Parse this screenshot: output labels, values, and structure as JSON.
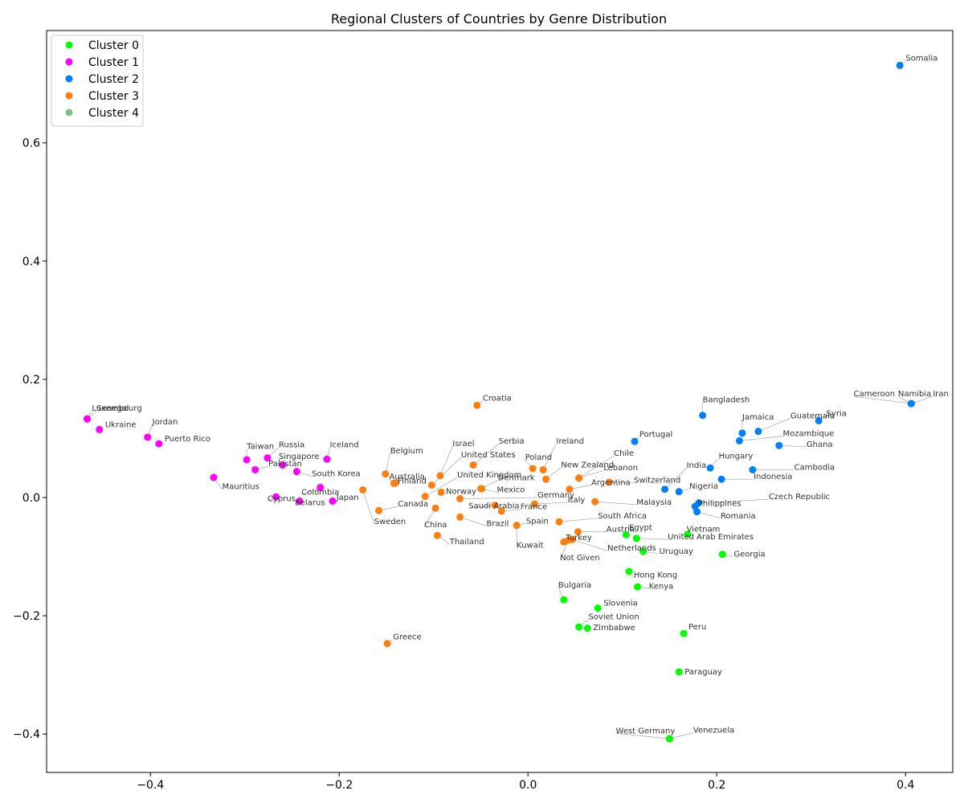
{
  "chart_data": {
    "type": "scatter",
    "title": "Regional Clusters of Countries by Genre Distribution",
    "xlabel": "",
    "ylabel": "",
    "xlim": [
      -0.51,
      0.45
    ],
    "ylim": [
      -0.465,
      0.79
    ],
    "xticks": [
      -0.4,
      -0.2,
      0.0,
      0.2,
      0.4
    ],
    "yticks": [
      -0.4,
      -0.2,
      0.0,
      0.2,
      0.4,
      0.6
    ],
    "xtick_labels": [
      "−0.4",
      "−0.2",
      "0.0",
      "0.2",
      "0.4"
    ],
    "ytick_labels": [
      "−0.4",
      "−0.2",
      "0.0",
      "0.2",
      "0.4",
      "0.6"
    ],
    "grid": false,
    "legend_position": "top-left",
    "series": [
      {
        "name": "Cluster 0",
        "color": "#00ff00",
        "points": [
          {
            "label": "Egypt",
            "x": 0.104,
            "y": -0.063,
            "lx": 0.107,
            "ly": -0.055
          },
          {
            "label": "United Arab Emirates",
            "x": 0.115,
            "y": -0.069,
            "lx": 0.148,
            "ly": -0.071
          },
          {
            "label": "Vietnam",
            "x": 0.169,
            "y": -0.062,
            "lx": 0.168,
            "ly": -0.058
          },
          {
            "label": "Uruguay",
            "x": 0.122,
            "y": -0.091,
            "lx": 0.139,
            "ly": -0.095
          },
          {
            "label": "Georgia",
            "x": 0.206,
            "y": -0.096,
            "lx": 0.218,
            "ly": -0.1
          },
          {
            "label": "Hong Kong",
            "x": 0.107,
            "y": -0.125,
            "lx": 0.112,
            "ly": -0.135
          },
          {
            "label": "Kenya",
            "x": 0.116,
            "y": -0.151,
            "lx": 0.128,
            "ly": -0.154
          },
          {
            "label": "Bulgaria",
            "x": 0.038,
            "y": -0.173,
            "lx": 0.032,
            "ly": -0.152
          },
          {
            "label": "Slovenia",
            "x": 0.074,
            "y": -0.187,
            "lx": 0.08,
            "ly": -0.183
          },
          {
            "label": "Soviet Union",
            "x": 0.054,
            "y": -0.219,
            "lx": 0.064,
            "ly": -0.206
          },
          {
            "label": "Zimbabwe",
            "x": 0.063,
            "y": -0.221,
            "lx": 0.069,
            "ly": -0.224
          },
          {
            "label": "Peru",
            "x": 0.165,
            "y": -0.23,
            "lx": 0.17,
            "ly": -0.223
          },
          {
            "label": "Paraguay",
            "x": 0.16,
            "y": -0.295,
            "lx": 0.166,
            "ly": -0.299
          },
          {
            "label": "Venezuela",
            "x": 0.15,
            "y": -0.408,
            "lx": 0.175,
            "ly": -0.398
          },
          {
            "label": "West Germany",
            "x": 0.15,
            "y": -0.408,
            "lx": 0.093,
            "ly": -0.399
          }
        ]
      },
      {
        "name": "Cluster 1",
        "color": "#ff00ff",
        "points": [
          {
            "label": "Luxembourg",
            "x": -0.467,
            "y": 0.133,
            "lx": -0.462,
            "ly": 0.147
          },
          {
            "label": "Senegal",
            "x": -0.467,
            "y": 0.133,
            "lx": -0.457,
            "ly": 0.147
          },
          {
            "label": "Ukraine",
            "x": -0.454,
            "y": 0.115,
            "lx": -0.448,
            "ly": 0.119
          },
          {
            "label": "Jordan",
            "x": -0.403,
            "y": 0.102,
            "lx": -0.398,
            "ly": 0.124
          },
          {
            "label": "Puerto Rico",
            "x": -0.391,
            "y": 0.091,
            "lx": -0.385,
            "ly": 0.095
          },
          {
            "label": "Russia",
            "x": -0.276,
            "y": 0.067,
            "lx": -0.264,
            "ly": 0.085
          },
          {
            "label": "Taiwan",
            "x": -0.298,
            "y": 0.064,
            "lx": -0.298,
            "ly": 0.082
          },
          {
            "label": "Singapore",
            "x": -0.26,
            "y": 0.055,
            "lx": -0.264,
            "ly": 0.065
          },
          {
            "label": "Pakistan",
            "x": -0.289,
            "y": 0.047,
            "lx": -0.275,
            "ly": 0.053
          },
          {
            "label": "Iceland",
            "x": -0.213,
            "y": 0.065,
            "lx": -0.21,
            "ly": 0.085
          },
          {
            "label": "South Korea",
            "x": -0.245,
            "y": 0.044,
            "lx": -0.229,
            "ly": 0.036
          },
          {
            "label": "Mauritius",
            "x": -0.333,
            "y": 0.034,
            "lx": -0.324,
            "ly": 0.014
          },
          {
            "label": "Colombia",
            "x": -0.22,
            "y": 0.017,
            "lx": -0.24,
            "ly": 0.005
          },
          {
            "label": "Cyprus",
            "x": -0.267,
            "y": 0.001,
            "lx": -0.276,
            "ly": -0.006
          },
          {
            "label": "Belarus",
            "x": -0.242,
            "y": -0.006,
            "lx": -0.247,
            "ly": -0.013
          },
          {
            "label": "Japan",
            "x": -0.207,
            "y": -0.006,
            "lx": -0.203,
            "ly": -0.004
          }
        ]
      },
      {
        "name": "Cluster 2",
        "color": "#0080ff",
        "points": [
          {
            "label": "Somalia",
            "x": 0.394,
            "y": 0.731,
            "lx": 0.4,
            "ly": 0.739
          },
          {
            "label": "Namibia",
            "x": 0.406,
            "y": 0.159,
            "lx": 0.392,
            "ly": 0.171
          },
          {
            "label": "Iran",
            "x": 0.406,
            "y": 0.159,
            "lx": 0.429,
            "ly": 0.171
          },
          {
            "label": "Cameroon",
            "x": 0.406,
            "y": 0.159,
            "lx": 0.345,
            "ly": 0.171
          },
          {
            "label": "Syria",
            "x": 0.308,
            "y": 0.13,
            "lx": 0.316,
            "ly": 0.138
          },
          {
            "label": "Bangladesh",
            "x": 0.185,
            "y": 0.139,
            "lx": 0.185,
            "ly": 0.161
          },
          {
            "label": "Guatemala",
            "x": 0.244,
            "y": 0.112,
            "lx": 0.278,
            "ly": 0.134
          },
          {
            "label": "Jamaica",
            "x": 0.227,
            "y": 0.109,
            "lx": 0.227,
            "ly": 0.132
          },
          {
            "label": "Mozambique",
            "x": 0.224,
            "y": 0.096,
            "lx": 0.27,
            "ly": 0.104
          },
          {
            "label": "Ghana",
            "x": 0.266,
            "y": 0.088,
            "lx": 0.295,
            "ly": 0.086
          },
          {
            "label": "Portugal",
            "x": 0.113,
            "y": 0.095,
            "lx": 0.118,
            "ly": 0.103
          },
          {
            "label": "Hungary",
            "x": 0.193,
            "y": 0.05,
            "lx": 0.202,
            "ly": 0.066
          },
          {
            "label": "Cambodia",
            "x": 0.238,
            "y": 0.047,
            "lx": 0.282,
            "ly": 0.047
          },
          {
            "label": "India",
            "x": 0.145,
            "y": 0.014,
            "lx": 0.168,
            "ly": 0.05
          },
          {
            "label": "Indonesia",
            "x": 0.205,
            "y": 0.031,
            "lx": 0.239,
            "ly": 0.031
          },
          {
            "label": "Nigeria",
            "x": 0.16,
            "y": 0.01,
            "lx": 0.171,
            "ly": 0.015
          },
          {
            "label": "Czech Republic",
            "x": 0.181,
            "y": -0.009,
            "lx": 0.255,
            "ly": -0.003
          },
          {
            "label": "Philippines",
            "x": 0.177,
            "y": -0.015,
            "lx": 0.18,
            "ly": -0.014
          },
          {
            "label": "Romania",
            "x": 0.179,
            "y": -0.024,
            "lx": 0.204,
            "ly": -0.035
          }
        ]
      },
      {
        "name": "Cluster 3",
        "color": "#ff7f0e",
        "points": [
          {
            "label": "Croatia",
            "x": -0.054,
            "y": 0.156,
            "lx": -0.048,
            "ly": 0.164
          },
          {
            "label": "Serbia",
            "x": -0.058,
            "y": 0.055,
            "lx": -0.031,
            "ly": 0.091
          },
          {
            "label": "Israel",
            "x": -0.093,
            "y": 0.037,
            "lx": -0.08,
            "ly": 0.087
          },
          {
            "label": "United States",
            "x": -0.102,
            "y": 0.021,
            "lx": -0.071,
            "ly": 0.068
          },
          {
            "label": "Ireland",
            "x": 0.016,
            "y": 0.047,
            "lx": 0.03,
            "ly": 0.091
          },
          {
            "label": "Poland",
            "x": 0.005,
            "y": 0.049,
            "lx": -0.003,
            "ly": 0.064
          },
          {
            "label": "New Zealand",
            "x": 0.019,
            "y": 0.031,
            "lx": 0.035,
            "ly": 0.051
          },
          {
            "label": "Chile",
            "x": 0.054,
            "y": 0.033,
            "lx": 0.091,
            "ly": 0.071
          },
          {
            "label": "Lebanon",
            "x": 0.054,
            "y": 0.033,
            "lx": 0.08,
            "ly": 0.046
          },
          {
            "label": "Argentina",
            "x": 0.044,
            "y": 0.014,
            "lx": 0.067,
            "ly": 0.021
          },
          {
            "label": "Switzerland",
            "x": 0.086,
            "y": 0.026,
            "lx": 0.112,
            "ly": 0.025
          },
          {
            "label": "Belgium",
            "x": -0.151,
            "y": 0.04,
            "lx": -0.146,
            "ly": 0.075
          },
          {
            "label": "Australia",
            "x": -0.14,
            "y": 0.025,
            "lx": -0.147,
            "ly": 0.031
          },
          {
            "label": "Finland",
            "x": -0.142,
            "y": 0.024,
            "lx": -0.138,
            "ly": 0.024
          },
          {
            "label": "United Kingdom",
            "x": -0.109,
            "y": 0.002,
            "lx": -0.075,
            "ly": 0.034
          },
          {
            "label": "Denmark",
            "x": -0.05,
            "y": 0.015,
            "lx": -0.032,
            "ly": 0.029
          },
          {
            "label": "Mexico",
            "x": -0.049,
            "y": 0.015,
            "lx": -0.033,
            "ly": 0.009
          },
          {
            "label": "Norway",
            "x": -0.092,
            "y": 0.009,
            "lx": -0.087,
            "ly": 0.006
          },
          {
            "label": "Germany",
            "x": -0.072,
            "y": -0.002,
            "lx": 0.01,
            "ly": 0.0
          },
          {
            "label": "Malaysia",
            "x": 0.071,
            "y": -0.007,
            "lx": 0.115,
            "ly": -0.012
          },
          {
            "label": "Italy",
            "x": 0.007,
            "y": -0.011,
            "lx": 0.042,
            "ly": -0.008
          },
          {
            "label": "Saudi Arabia",
            "x": -0.035,
            "y": -0.013,
            "lx": -0.063,
            "ly": -0.018
          },
          {
            "label": "France",
            "x": -0.028,
            "y": -0.023,
            "lx": -0.008,
            "ly": -0.02
          },
          {
            "label": "Canada",
            "x": -0.158,
            "y": -0.022,
            "lx": -0.138,
            "ly": -0.015
          },
          {
            "label": "China",
            "x": -0.098,
            "y": -0.018,
            "lx": -0.11,
            "ly": -0.05
          },
          {
            "label": "Brazil",
            "x": -0.072,
            "y": -0.033,
            "lx": -0.044,
            "ly": -0.048
          },
          {
            "label": "Sweden",
            "x": -0.175,
            "y": 0.013,
            "lx": -0.163,
            "ly": -0.045
          },
          {
            "label": "South Africa",
            "x": 0.033,
            "y": -0.041,
            "lx": 0.074,
            "ly": -0.035
          },
          {
            "label": "Spain",
            "x": -0.012,
            "y": -0.047,
            "lx": -0.002,
            "ly": -0.044
          },
          {
            "label": "Austria",
            "x": 0.053,
            "y": -0.058,
            "lx": 0.083,
            "ly": -0.058
          },
          {
            "label": "Turkey",
            "x": 0.038,
            "y": -0.075,
            "lx": 0.04,
            "ly": -0.072
          },
          {
            "label": "Netherlands",
            "x": 0.047,
            "y": -0.071,
            "lx": 0.084,
            "ly": -0.09
          },
          {
            "label": "Kuwait",
            "x": -0.012,
            "y": -0.047,
            "lx": -0.012,
            "ly": -0.085
          },
          {
            "label": "Not Given",
            "x": 0.043,
            "y": -0.072,
            "lx": 0.034,
            "ly": -0.106
          },
          {
            "label": "Thailand",
            "x": -0.096,
            "y": -0.064,
            "lx": -0.083,
            "ly": -0.079
          },
          {
            "label": "Greece",
            "x": -0.149,
            "y": -0.247,
            "lx": -0.143,
            "ly": -0.24
          }
        ]
      },
      {
        "name": "Cluster 4",
        "color": "#7fbf7f",
        "points": []
      }
    ]
  }
}
